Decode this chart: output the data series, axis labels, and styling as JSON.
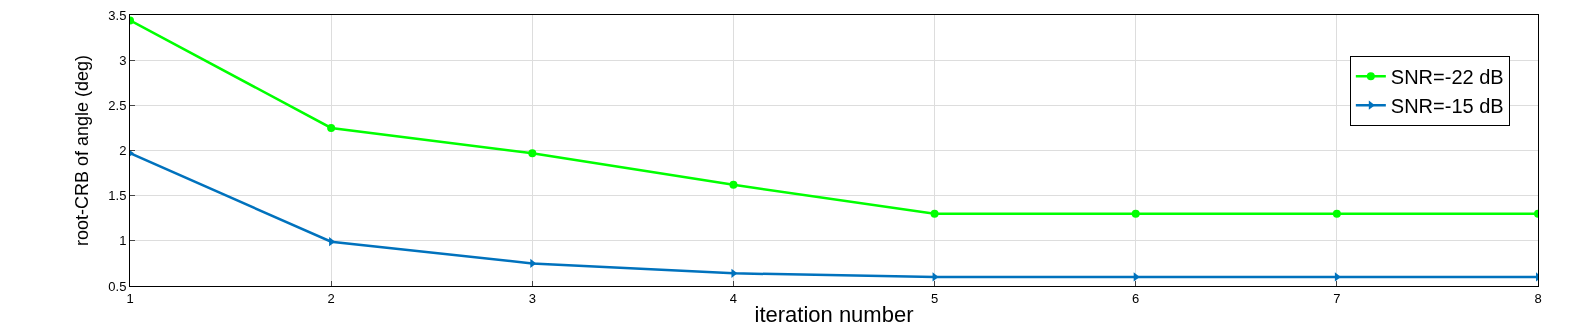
{
  "chart_data": {
    "type": "line",
    "xlabel": "iteration number",
    "ylabel": "root-CRB of angle (deg)",
    "x": [
      1,
      2,
      3,
      4,
      5,
      6,
      7,
      8
    ],
    "series": [
      {
        "name": "SNR=-22 dB",
        "color": "#00ff00",
        "marker": "circle",
        "values": [
          3.44,
          2.25,
          1.97,
          1.62,
          1.3,
          1.3,
          1.3,
          1.3
        ]
      },
      {
        "name": "SNR=-15 dB",
        "color": "#0072bd",
        "marker": "triangle",
        "values": [
          1.97,
          0.99,
          0.75,
          0.64,
          0.6,
          0.6,
          0.6,
          0.6
        ]
      }
    ],
    "xlim": [
      1,
      8
    ],
    "xticks": [
      1,
      2,
      3,
      4,
      5,
      6,
      7,
      8
    ],
    "ylim": [
      0.5,
      3.5
    ],
    "yticks": [
      0.5,
      1,
      1.5,
      2,
      2.5,
      3,
      3.5
    ],
    "grid": true,
    "legend": "top right",
    "line_style": "solid"
  }
}
